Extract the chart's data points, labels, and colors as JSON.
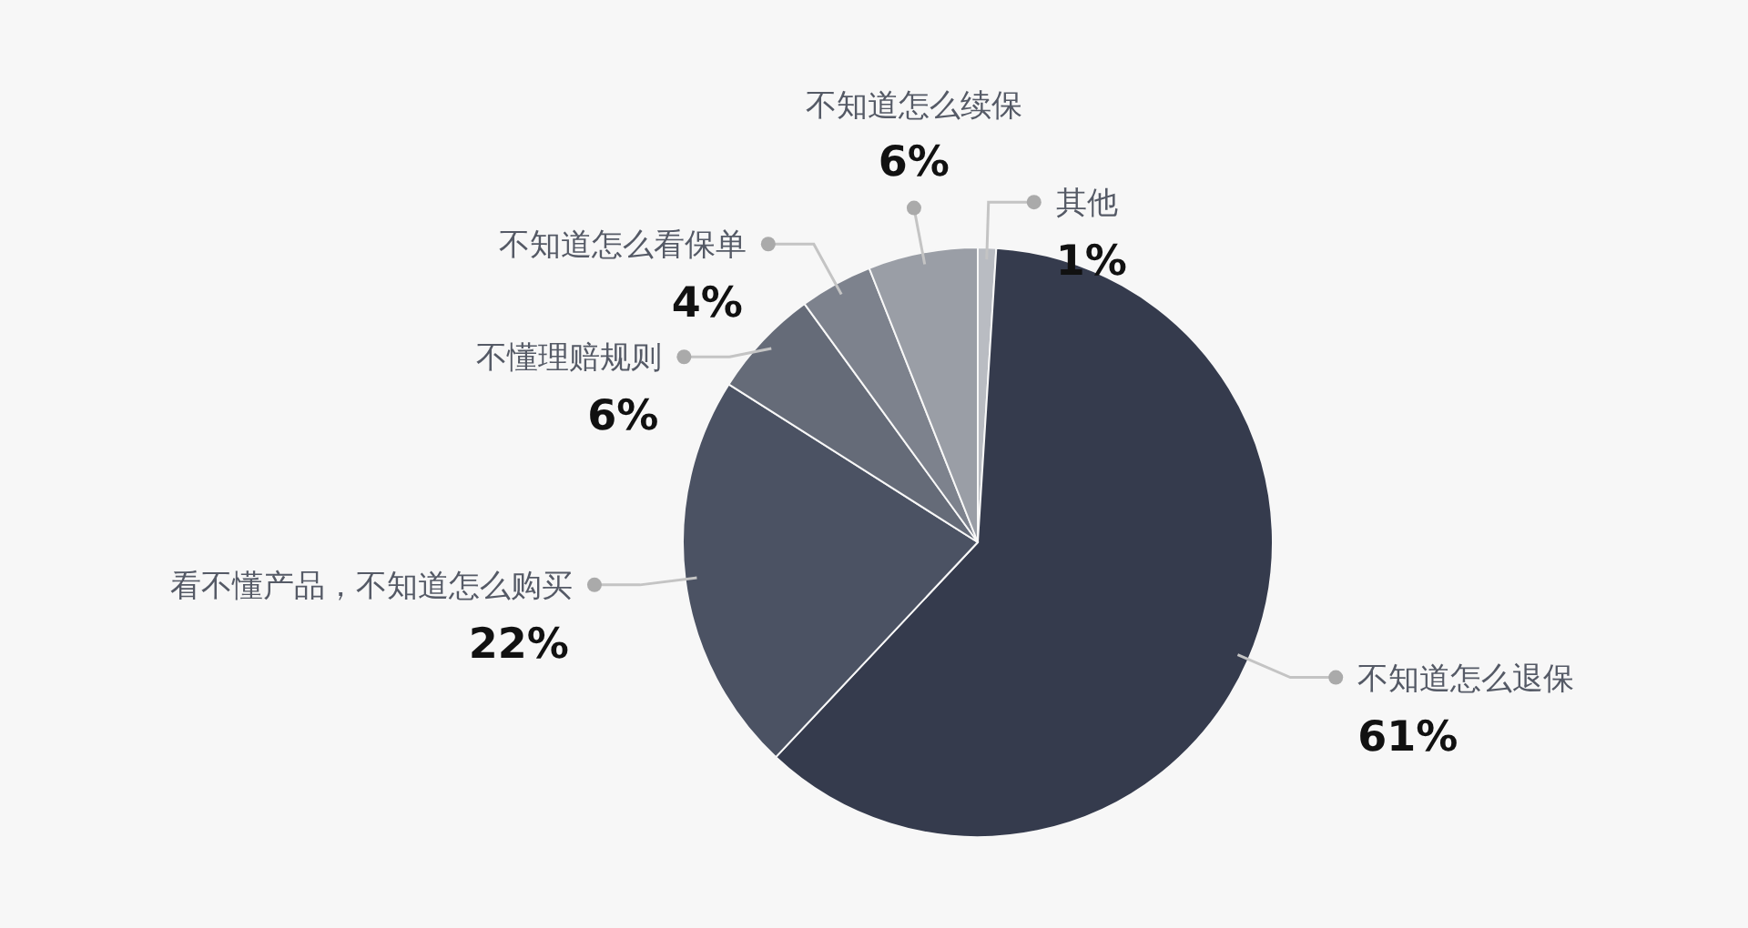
{
  "chart_data": {
    "type": "pie",
    "categories": [
      "其他",
      "不知道怎么退保",
      "看不懂产品，不知道怎么购买",
      "不懂理赔规则",
      "不知道怎么看保单",
      "不知道怎么续保"
    ],
    "values": [
      1,
      61,
      22,
      6,
      4,
      6
    ],
    "colors": [
      "#b9bcc2",
      "#353b4d",
      "#4b5263",
      "#656b78",
      "#7d828d",
      "#9a9ea6"
    ],
    "value_labels": [
      "1%",
      "61%",
      "22%",
      "6%",
      "4%",
      "6%"
    ]
  }
}
